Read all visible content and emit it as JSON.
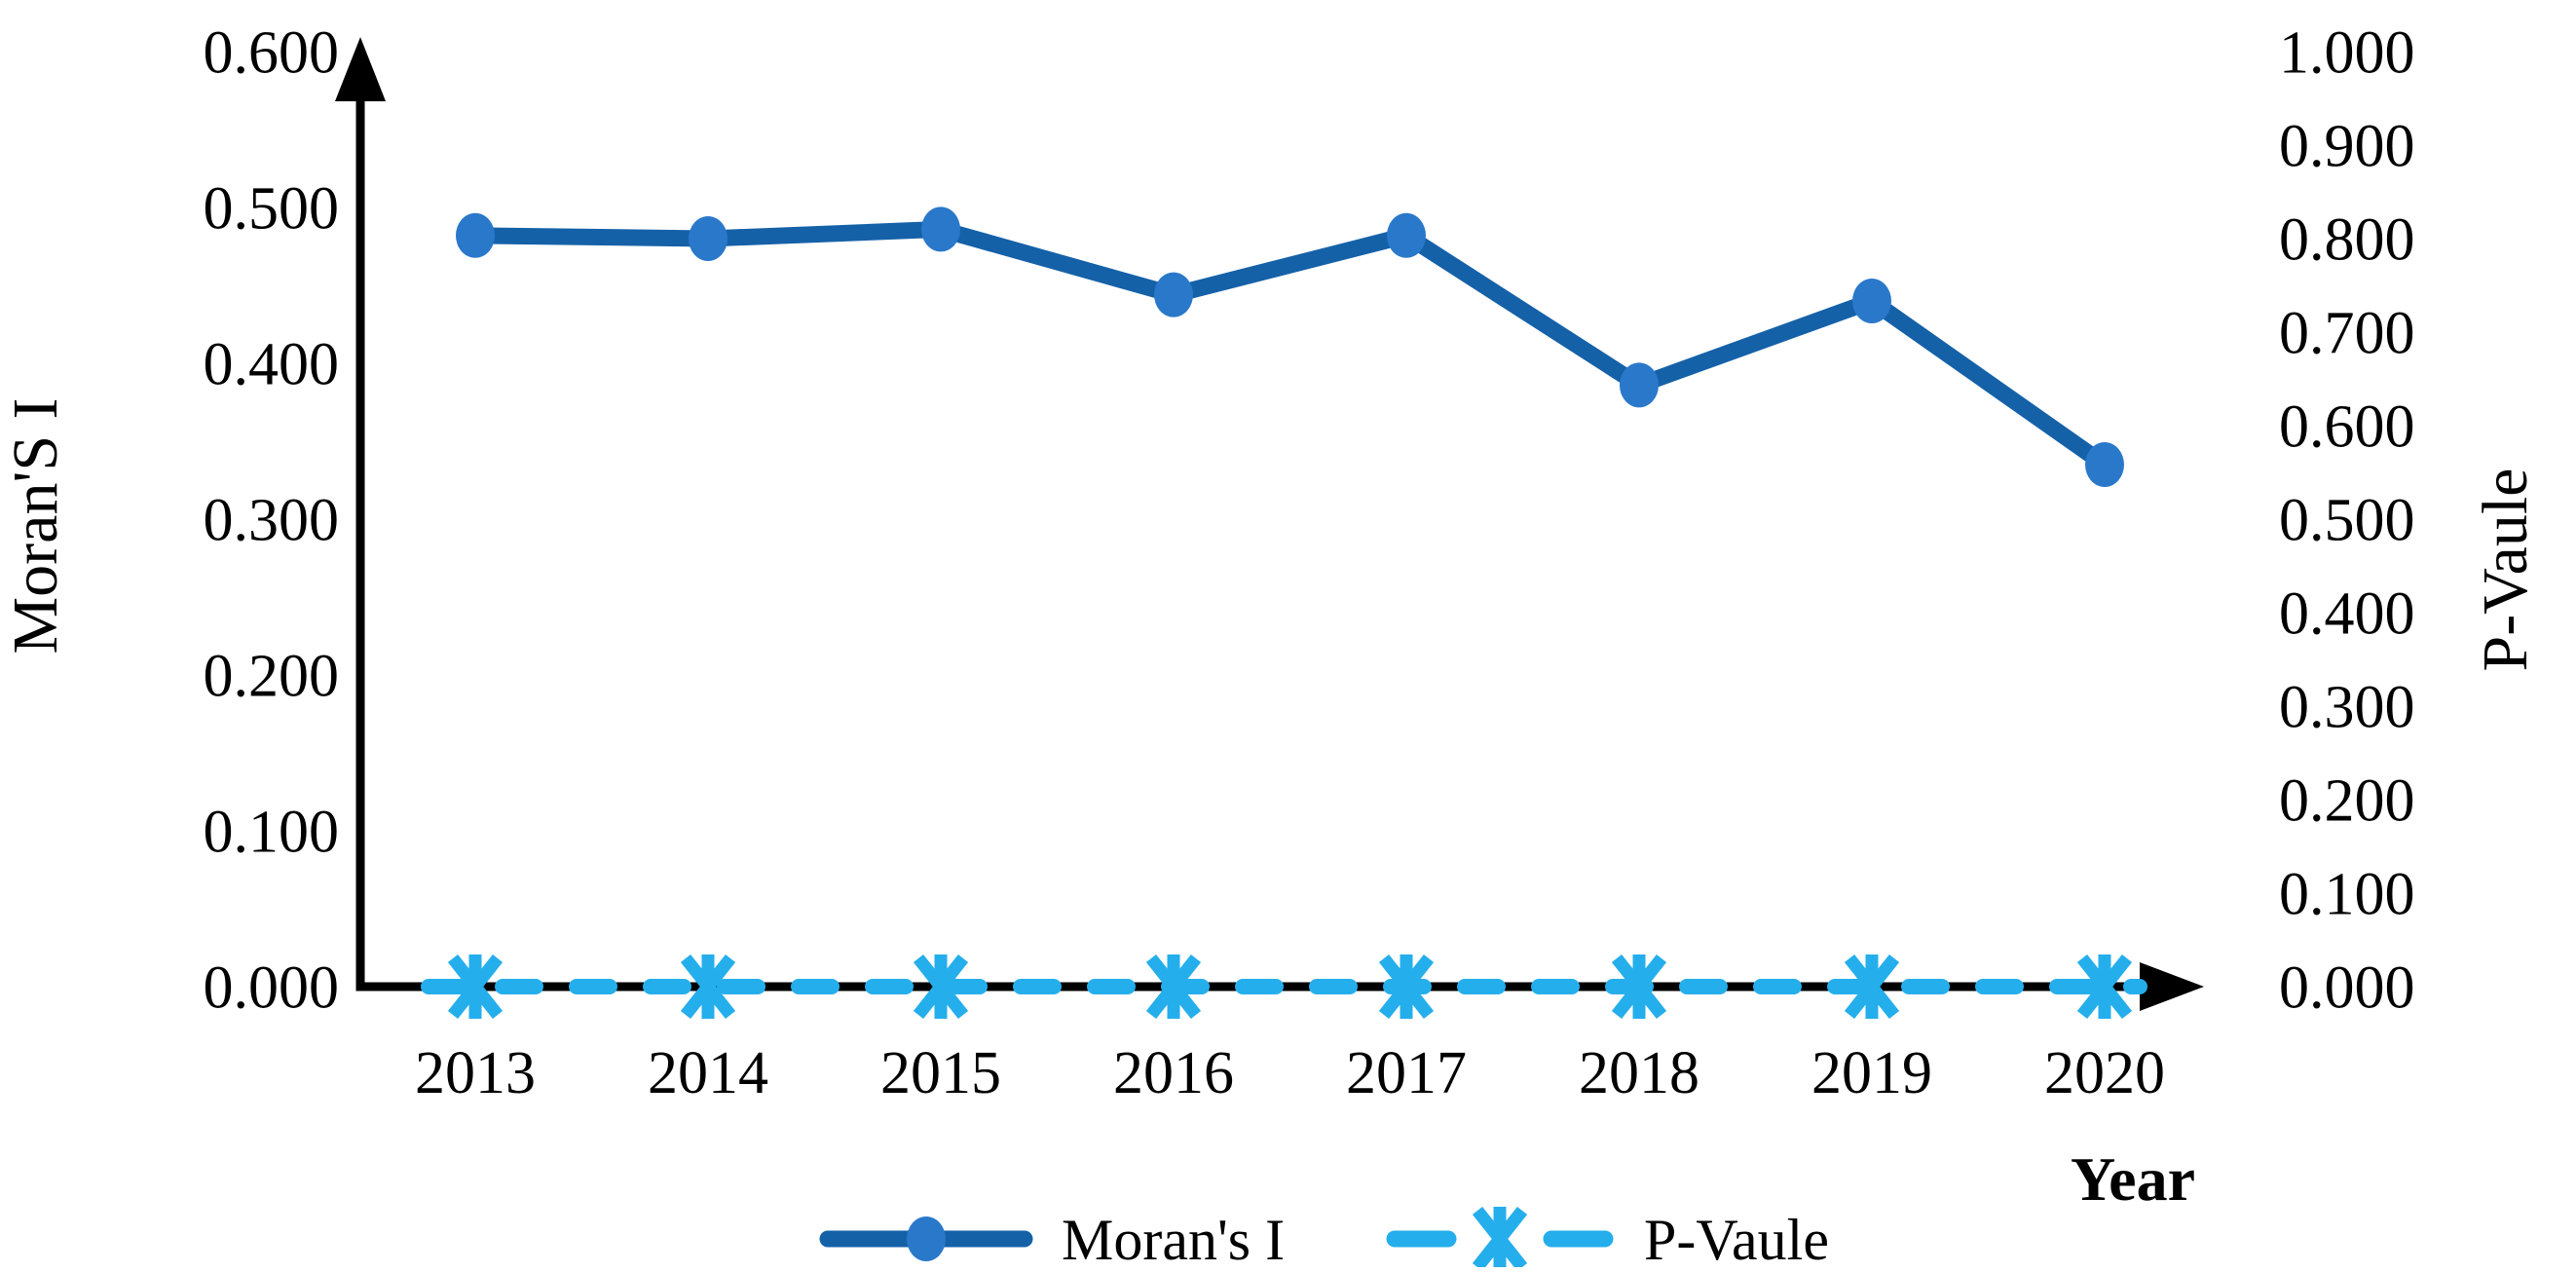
{
  "chart_data": {
    "type": "line",
    "title": "",
    "x_axis": {
      "title": "Year",
      "categories": [
        "2013",
        "2014",
        "2015",
        "2016",
        "2017",
        "2018",
        "2019",
        "2020"
      ]
    },
    "left_axis": {
      "title": "Moran'S I",
      "min": 0.0,
      "max": 0.6,
      "step": 0.1,
      "tick_labels": [
        "0.600",
        "0.500",
        "0.400",
        "0.300",
        "0.200",
        "0.100",
        "0.000"
      ]
    },
    "right_axis": {
      "title": "P-Vaule",
      "min": 0.0,
      "max": 1.0,
      "step": 0.1,
      "tick_labels": [
        "1.000",
        "0.900",
        "0.800",
        "0.700",
        "0.600",
        "0.500",
        "0.400",
        "0.300",
        "0.200",
        "0.100",
        "0.000"
      ]
    },
    "series": [
      {
        "name": "Moran's I",
        "axis": "left",
        "style": "solid",
        "marker": "circle",
        "line_color": "#1561A8",
        "marker_color": "#2A78CA",
        "values": [
          0.482,
          0.48,
          0.486,
          0.444,
          0.482,
          0.386,
          0.44,
          0.335
        ]
      },
      {
        "name": "P-Vaule",
        "axis": "right",
        "style": "dashed",
        "marker": "asterisk",
        "line_color": "#25AEEC",
        "marker_color": "#25AEEC",
        "values": [
          0.0,
          0.0,
          0.0,
          0.0,
          0.0,
          0.0,
          0.0,
          0.0
        ]
      }
    ],
    "legend": [
      {
        "label": "Moran's I"
      },
      {
        "label": "P-Vaule"
      }
    ],
    "grid": false,
    "legend_position": "bottom-center",
    "colors": {
      "axis": "#000000",
      "moran_line": "#1561A8",
      "moran_marker": "#2A78CA",
      "pvalue": "#25AEEC"
    }
  }
}
